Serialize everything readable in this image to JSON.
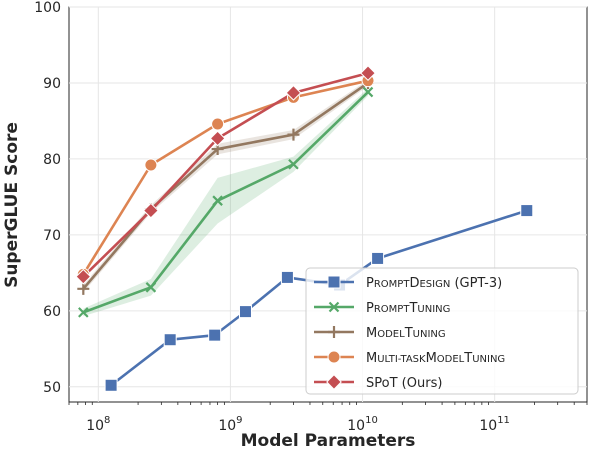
{
  "chart_data": {
    "type": "line",
    "xlabel": "Model Parameters",
    "ylabel": "SuperGLUE Score",
    "xscale": "log",
    "xlim": [
      60000000,
      500000000000
    ],
    "ylim": [
      48,
      100
    ],
    "grid": true,
    "legend_position": "lower-right",
    "y_ticks": [
      "50",
      "60",
      "70",
      "80",
      "90",
      "100"
    ],
    "x_ticks": [
      {
        "base": "10",
        "exp": "8",
        "value": 100000000
      },
      {
        "base": "10",
        "exp": "9",
        "value": 1000000000
      },
      {
        "base": "10",
        "exp": "10",
        "value": 10000000000
      },
      {
        "base": "10",
        "exp": "11",
        "value": 100000000000
      }
    ],
    "series": [
      {
        "name": "PromptDesign (GPT-3)",
        "color": "#4c72b0",
        "marker": "square",
        "points": [
          [
            125000000,
            50.2
          ],
          [
            350000000,
            56.2
          ],
          [
            760000000,
            56.8
          ],
          [
            1300000000,
            59.9
          ],
          [
            2700000000,
            64.4
          ],
          [
            6700000000,
            63.4
          ],
          [
            13000000000,
            66.9
          ],
          [
            175000000000,
            73.2
          ]
        ]
      },
      {
        "name": "PromptTuning",
        "color": "#55a868",
        "marker": "x",
        "points": [
          [
            77000000,
            59.8
          ],
          [
            250000000,
            63.1
          ],
          [
            800000000,
            74.5
          ],
          [
            3000000000,
            79.3
          ],
          [
            11000000000,
            88.8
          ]
        ],
        "band_low": [
          59.3,
          62.0,
          71.5,
          78.3,
          88.3
        ],
        "band_high": [
          60.3,
          64.2,
          77.5,
          80.3,
          89.3
        ]
      },
      {
        "name": "ModelTuning",
        "color": "#937860",
        "marker": "plus",
        "points": [
          [
            77000000,
            62.9
          ],
          [
            250000000,
            73.4
          ],
          [
            800000000,
            81.3
          ],
          [
            3000000000,
            83.2
          ],
          [
            11000000000,
            90.0
          ]
        ],
        "band_low": [
          62.4,
          72.9,
          80.6,
          82.6,
          89.6
        ],
        "band_high": [
          63.4,
          73.9,
          82.0,
          83.8,
          90.4
        ]
      },
      {
        "name": "Multi-taskModelTuning",
        "color": "#dd8452",
        "marker": "circle",
        "points": [
          [
            77000000,
            64.8
          ],
          [
            250000000,
            79.2
          ],
          [
            800000000,
            84.6
          ],
          [
            3000000000,
            88.1
          ],
          [
            11000000000,
            90.3
          ]
        ]
      },
      {
        "name": "SPoT (Ours)",
        "color": "#c44e52",
        "marker": "diamond",
        "points": [
          [
            77000000,
            64.5
          ],
          [
            250000000,
            73.2
          ],
          [
            800000000,
            82.7
          ],
          [
            3000000000,
            88.7
          ],
          [
            11000000000,
            91.3
          ]
        ]
      }
    ],
    "legend_labels": [
      {
        "big1": "P",
        "small1": "ROMPT",
        "big2": "D",
        "small2": "ESIGN",
        "rest": " (GPT-3)"
      },
      {
        "big1": "P",
        "small1": "ROMPT",
        "big2": "T",
        "small2": "UNING",
        "rest": ""
      },
      {
        "big1": "M",
        "small1": "ODEL",
        "big2": "T",
        "small2": "UNING",
        "rest": ""
      },
      {
        "big1": "M",
        "small1": "ULTI-TASK",
        "big2": "M",
        "small2": "ODEL",
        "big3": "T",
        "small3": "UNING",
        "rest": ""
      },
      {
        "big1": "SP",
        "small1": "",
        "big2": "o",
        "small2": "",
        "rest": "T (Ours)"
      }
    ]
  }
}
